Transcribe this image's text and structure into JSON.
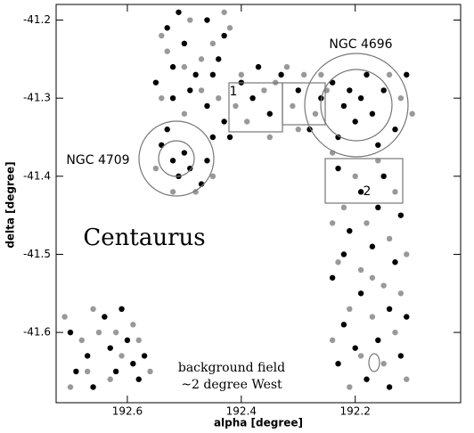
{
  "chart_data": {
    "type": "scatter",
    "xlabel": "alpha [degree]",
    "ylabel": "delta [degree]",
    "xlim": [
      192.725,
      192.015
    ],
    "ylim": [
      -41.69,
      -41.18
    ],
    "xticks": [
      192.6,
      192.4,
      192.2
    ],
    "yticks": [
      -41.2,
      -41.3,
      -41.4,
      -41.5,
      -41.6
    ],
    "annotations": [
      "NGC 4696",
      "NGC 4709",
      "Centaurus",
      "background field",
      "~2 degree West",
      "1",
      "2"
    ],
    "series": [
      {
        "color": "#000000",
        "x": [
          192.53,
          192.5,
          192.46,
          192.44,
          192.52,
          192.48,
          192.43,
          192.51,
          192.55,
          192.52,
          192.49,
          192.46,
          192.43,
          192.4,
          192.38,
          192.35,
          192.33,
          192.3,
          192.28,
          192.26,
          192.24,
          192.22,
          192.21,
          192.2,
          192.19,
          192.18,
          192.17,
          192.15,
          192.13,
          192.11,
          192.23,
          192.16,
          192.42,
          192.37,
          192.45,
          192.54,
          192.52,
          192.5,
          192.49,
          192.47,
          192.51,
          192.45,
          192.53,
          192.46,
          192.23,
          192.19,
          192.15,
          192.12,
          192.21,
          192.17,
          192.13,
          192.24,
          192.19,
          192.14,
          192.22,
          192.16,
          192.12,
          192.23,
          192.18,
          192.14,
          192.2,
          192.11,
          192.22,
          192.16,
          192.7,
          192.67,
          192.64,
          192.62,
          192.6,
          192.58,
          192.66,
          192.69,
          192.63,
          192.59,
          192.61,
          192.57
        ],
        "y": [
          -41.21,
          -41.23,
          -41.2,
          -41.25,
          -41.26,
          -41.27,
          -41.22,
          -41.19,
          -41.28,
          -41.3,
          -41.29,
          -41.31,
          -41.33,
          -41.28,
          -41.3,
          -41.32,
          -41.27,
          -41.29,
          -41.34,
          -41.3,
          -41.28,
          -41.31,
          -41.29,
          -41.33,
          -41.3,
          -41.27,
          -41.32,
          -41.29,
          -41.34,
          -41.27,
          -41.35,
          -41.36,
          -41.35,
          -41.26,
          -41.27,
          -41.36,
          -41.38,
          -41.37,
          -41.39,
          -41.41,
          -41.4,
          -41.35,
          -41.34,
          -41.38,
          -41.39,
          -41.42,
          -41.4,
          -41.45,
          -41.47,
          -41.49,
          -41.51,
          -41.53,
          -41.55,
          -41.57,
          -41.59,
          -41.61,
          -41.63,
          -41.64,
          -41.66,
          -41.67,
          -41.62,
          -41.58,
          -41.5,
          -41.44,
          -41.6,
          -41.63,
          -41.58,
          -41.65,
          -41.61,
          -41.66,
          -41.67,
          -41.65,
          -41.62,
          -41.64,
          -41.57,
          -41.63
        ]
      },
      {
        "color": "#999999",
        "x": [
          192.54,
          192.49,
          192.45,
          192.42,
          192.47,
          192.53,
          192.5,
          192.43,
          192.54,
          192.5,
          192.47,
          192.44,
          192.41,
          192.39,
          192.36,
          192.34,
          192.31,
          192.29,
          192.27,
          192.25,
          192.12,
          192.14,
          192.1,
          192.3,
          192.35,
          192.4,
          192.32,
          192.26,
          192.55,
          192.48,
          192.45,
          192.52,
          192.24,
          192.2,
          192.16,
          192.13,
          192.22,
          192.18,
          192.14,
          192.11,
          192.23,
          192.19,
          192.15,
          192.12,
          192.21,
          192.17,
          192.13,
          192.24,
          192.19,
          192.15,
          192.11,
          192.21,
          192.17,
          192.24,
          192.71,
          192.68,
          192.65,
          192.63,
          192.61,
          192.59,
          192.56,
          192.67,
          192.7,
          192.62,
          192.58,
          192.66
        ],
        "y": [
          -41.22,
          -41.2,
          -41.23,
          -41.21,
          -41.25,
          -41.24,
          -41.26,
          -41.19,
          -41.3,
          -41.32,
          -41.29,
          -41.3,
          -41.31,
          -41.33,
          -41.29,
          -41.28,
          -41.31,
          -41.27,
          -41.32,
          -41.29,
          -41.3,
          -41.27,
          -41.32,
          -41.34,
          -41.35,
          -41.27,
          -41.26,
          -41.27,
          -41.39,
          -41.42,
          -41.4,
          -41.42,
          -41.37,
          -41.4,
          -41.38,
          -41.42,
          -41.44,
          -41.46,
          -41.48,
          -41.5,
          -41.51,
          -41.52,
          -41.54,
          -41.55,
          -41.57,
          -41.58,
          -41.6,
          -41.61,
          -41.63,
          -41.64,
          -41.66,
          -41.67,
          -41.53,
          -41.46,
          -41.58,
          -41.61,
          -41.6,
          -41.66,
          -41.63,
          -41.59,
          -41.65,
          -41.65,
          -41.67,
          -41.6,
          -41.61,
          -41.57
        ]
      }
    ]
  }
}
